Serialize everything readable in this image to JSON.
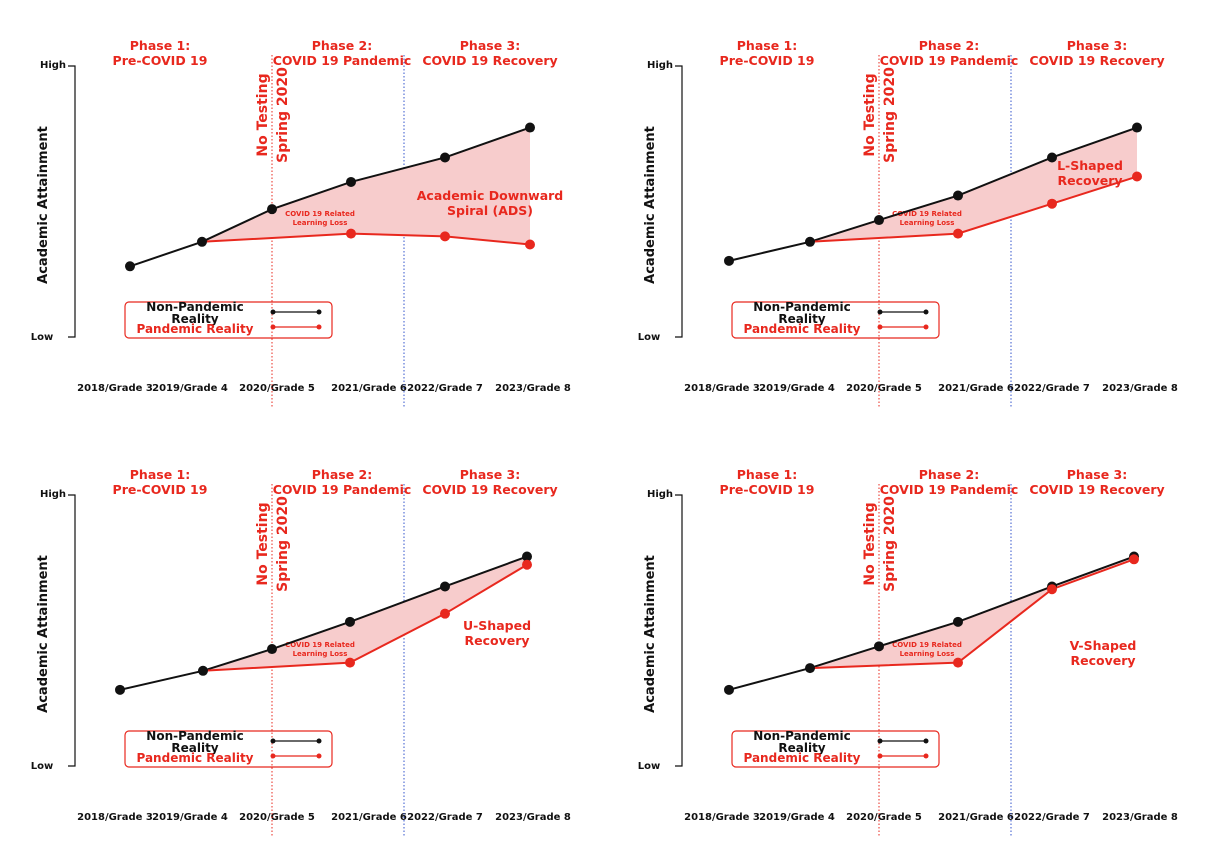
{
  "colors": {
    "non_pandemic": "#111111",
    "pandemic": "#e8281e",
    "loss_fill": "#f7cccc",
    "phase_divider": "#3355cc",
    "no_testing_divider": "#e8281e"
  },
  "chart_data": [
    {
      "type": "line",
      "ylabel": "Academic Attainment",
      "ytick_labels": [
        "High",
        "Low"
      ],
      "categories": [
        "2018/Grade 3",
        "2019/Grade 4",
        "2020/Grade 5",
        "2021/Grade 6",
        "2022/Grade 7",
        "2023/Grade 8"
      ],
      "phases": [
        {
          "title": "Phase 1:",
          "subtitle": "Pre-COVID 19"
        },
        {
          "title": "Phase 2:",
          "subtitle": "COVID 19 Pandemic"
        },
        {
          "title": "Phase 3:",
          "subtitle": "COVID 19 Recovery"
        }
      ],
      "no_testing_label": [
        "No Testing",
        "Spring 2020"
      ],
      "series": [
        {
          "name": "Non-Pandemic Reality",
          "values": [
            0.26,
            0.35,
            0.47,
            0.57,
            0.66,
            0.77
          ]
        },
        {
          "name": "Pandemic Reality",
          "values": [
            null,
            0.35,
            null,
            0.38,
            0.37,
            0.34
          ]
        }
      ],
      "annotations": {
        "loss_label": [
          "COVID 19 Related",
          "Learning Loss"
        ],
        "outcome_label": [
          "Academic Downward",
          "Spiral (ADS)"
        ]
      },
      "legend": "bottom-left"
    },
    {
      "type": "line",
      "ylabel": "Academic Attainment",
      "ytick_labels": [
        "High",
        "Low"
      ],
      "categories": [
        "2018/Grade 3",
        "2019/Grade 4",
        "2020/Grade 5",
        "2021/Grade 6",
        "2022/Grade 7",
        "2023/Grade 8"
      ],
      "phases": [
        {
          "title": "Phase 1:",
          "subtitle": "Pre-COVID 19"
        },
        {
          "title": "Phase 2:",
          "subtitle": "COVID 19 Pandemic"
        },
        {
          "title": "Phase 3:",
          "subtitle": "COVID 19 Recovery"
        }
      ],
      "no_testing_label": [
        "No Testing",
        "Spring 2020"
      ],
      "series": [
        {
          "name": "Non-Pandemic Reality",
          "values": [
            0.28,
            0.35,
            0.43,
            0.52,
            0.66,
            0.77
          ]
        },
        {
          "name": "Pandemic Reality",
          "values": [
            null,
            0.35,
            null,
            0.38,
            0.49,
            0.59
          ]
        }
      ],
      "annotations": {
        "loss_label": [
          "COVID 19 Related",
          "Learning Loss"
        ],
        "outcome_label": [
          "L-Shaped",
          "Recovery"
        ]
      },
      "legend": "bottom-left"
    },
    {
      "type": "line",
      "ylabel": "Academic Attainment",
      "ytick_labels": [
        "High",
        "Low"
      ],
      "categories": [
        "2018/Grade 3",
        "2019/Grade 4",
        "2020/Grade 5",
        "2021/Grade 6",
        "2022/Grade 7",
        "2023/Grade 8"
      ],
      "phases": [
        {
          "title": "Phase 1:",
          "subtitle": "Pre-COVID 19"
        },
        {
          "title": "Phase 2:",
          "subtitle": "COVID 19 Pandemic"
        },
        {
          "title": "Phase 3:",
          "subtitle": "COVID 19 Recovery"
        }
      ],
      "no_testing_label": [
        "No Testing",
        "Spring 2020"
      ],
      "series": [
        {
          "name": "Non-Pandemic Reality",
          "values": [
            0.28,
            0.35,
            0.43,
            0.53,
            0.66,
            0.77
          ]
        },
        {
          "name": "Pandemic Reality",
          "values": [
            null,
            0.35,
            null,
            0.38,
            0.56,
            0.74
          ]
        }
      ],
      "annotations": {
        "loss_label": [
          "COVID 19 Related",
          "Learning Loss"
        ],
        "outcome_label": [
          "U-Shaped",
          "Recovery"
        ]
      },
      "legend": "bottom-left"
    },
    {
      "type": "line",
      "ylabel": "Academic Attainment",
      "ytick_labels": [
        "High",
        "Low"
      ],
      "categories": [
        "2018/Grade 3",
        "2019/Grade 4",
        "2020/Grade 5",
        "2021/Grade 6",
        "2022/Grade 7",
        "2023/Grade 8"
      ],
      "phases": [
        {
          "title": "Phase 1:",
          "subtitle": "Pre-COVID 19"
        },
        {
          "title": "Phase 2:",
          "subtitle": "COVID 19 Pandemic"
        },
        {
          "title": "Phase 3:",
          "subtitle": "COVID 19 Recovery"
        }
      ],
      "no_testing_label": [
        "No Testing",
        "Spring 2020"
      ],
      "series": [
        {
          "name": "Non-Pandemic Reality",
          "values": [
            0.28,
            0.36,
            0.44,
            0.53,
            0.66,
            0.77
          ]
        },
        {
          "name": "Pandemic Reality",
          "values": [
            null,
            0.36,
            null,
            0.38,
            0.65,
            0.76
          ]
        }
      ],
      "annotations": {
        "loss_label": [
          "COVID 19 Related",
          "Learning Loss"
        ],
        "outcome_label": [
          "V-Shaped",
          "Recovery"
        ]
      },
      "legend": "bottom-left"
    }
  ]
}
